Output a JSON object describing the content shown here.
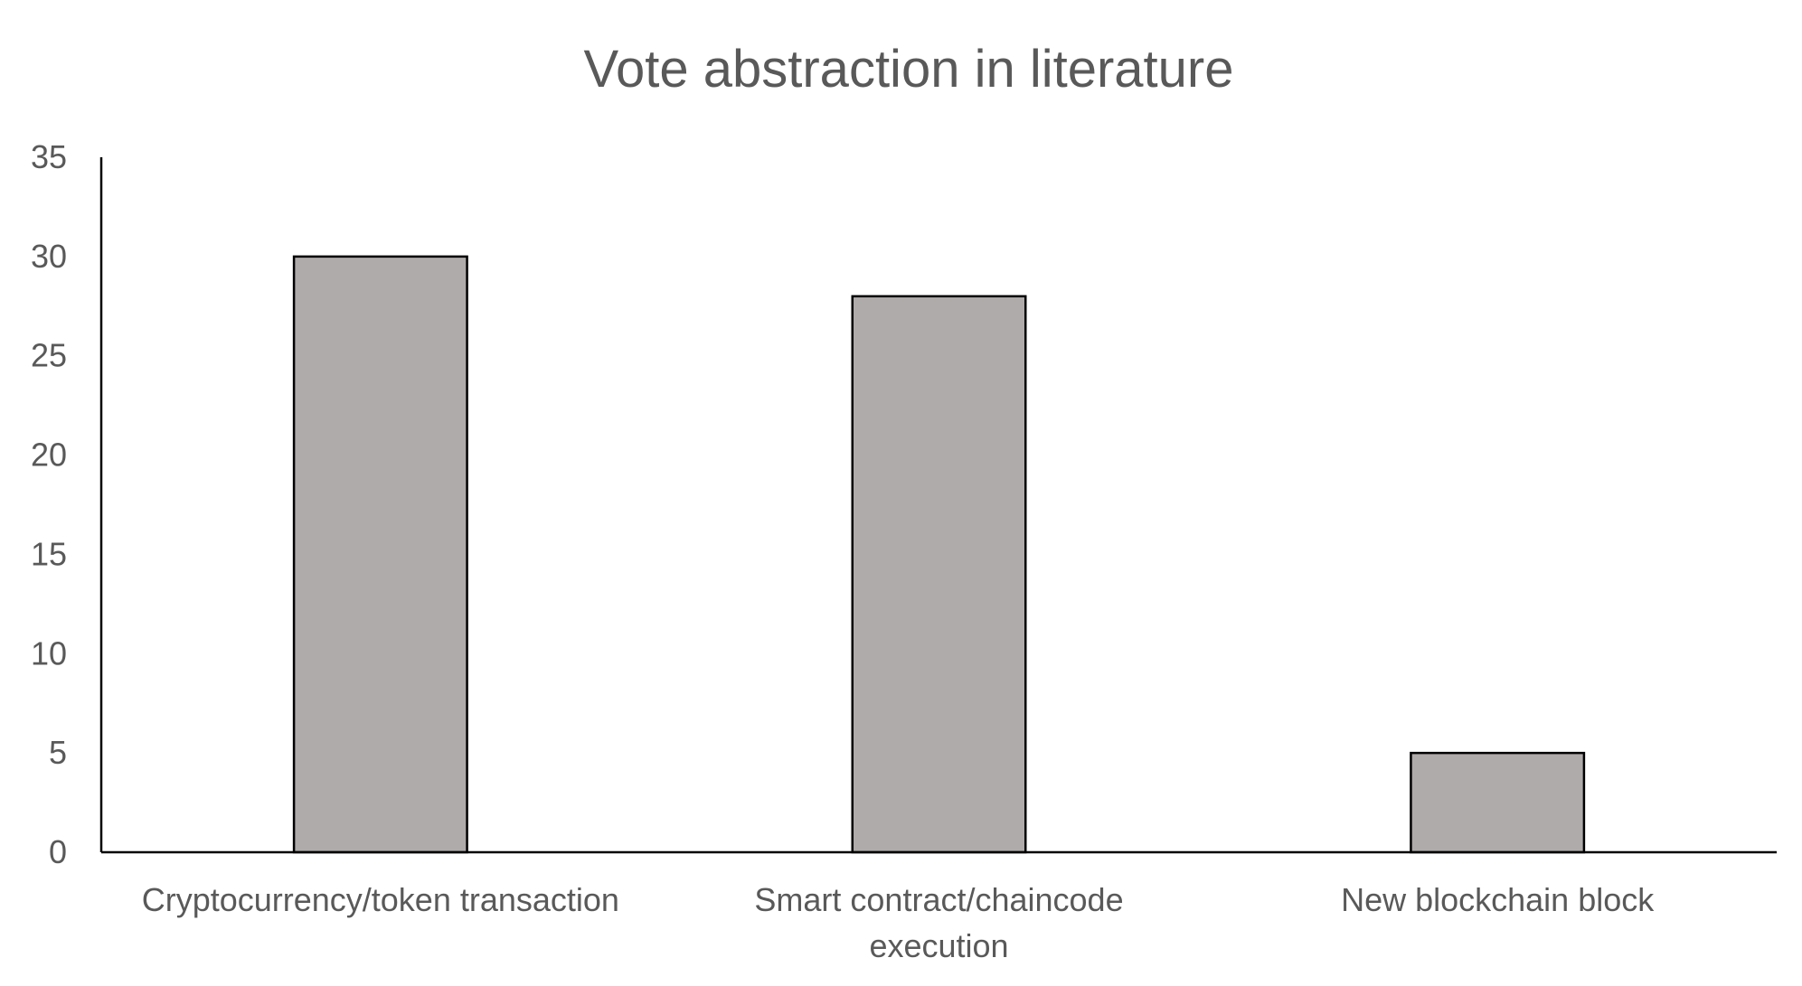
{
  "chart_data": {
    "type": "bar",
    "title": "Vote abstraction in literature",
    "xlabel": "",
    "ylabel": "",
    "categories": [
      [
        "Cryptocurrency/token transaction"
      ],
      [
        "Smart contract/chaincode",
        "execution"
      ],
      [
        "New blockchain block"
      ]
    ],
    "values": [
      30,
      28,
      5
    ],
    "ylim": [
      0,
      35
    ],
    "yticks": [
      "0",
      "5",
      "10",
      "15",
      "20",
      "25",
      "30",
      "35"
    ],
    "grid": false,
    "legend": "none",
    "bar_color": "#afabaa",
    "bar_edge_color": "#000000"
  }
}
